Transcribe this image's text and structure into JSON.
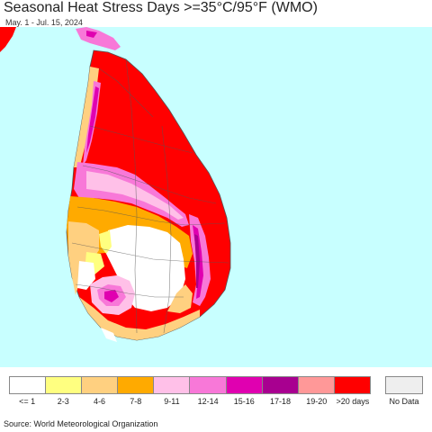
{
  "header": {
    "title": "Seasonal Heat Stress Days >=35°C/95°F (WMO)",
    "subtitle": "May. 1 - Jul. 15, 2024"
  },
  "colors": {
    "ocean": "#c8ffff",
    "land_outside": "#ff0000",
    "boundary": "#555555"
  },
  "legend": {
    "items": [
      {
        "label": "<= 1",
        "color": "#ffffff"
      },
      {
        "label": "2-3",
        "color": "#ffff80"
      },
      {
        "label": "4-6",
        "color": "#ffd080"
      },
      {
        "label": "7-8",
        "color": "#ffaa00"
      },
      {
        "label": "9-11",
        "color": "#ffc0e8"
      },
      {
        "label": "12-14",
        "color": "#f878d8"
      },
      {
        "label": "15-16",
        "color": "#e000b0"
      },
      {
        "label": "17-18",
        "color": "#a80090"
      },
      {
        "label": "19-20",
        "color": "#ff9898"
      },
      {
        "label": ">20 days",
        "color": "#ff0000"
      }
    ],
    "no_data": {
      "label": "No Data",
      "color": "#eeeeee"
    }
  },
  "footer": {
    "source": "Source: World Meteorological Organization"
  }
}
